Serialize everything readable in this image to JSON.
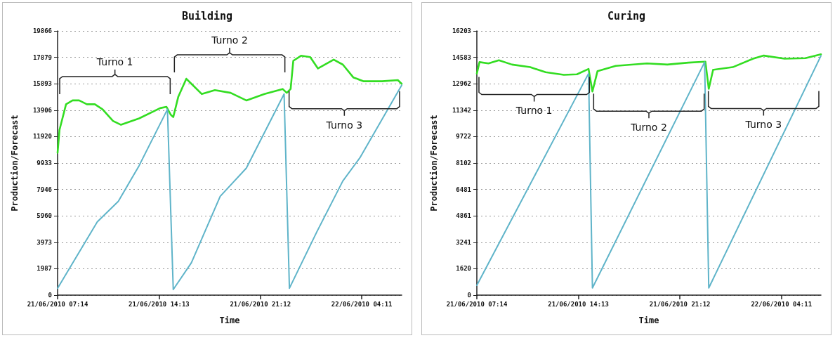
{
  "chart_data": [
    {
      "type": "line",
      "title": "Building",
      "xlabel": "Time",
      "ylabel": "Production/Forecast",
      "grid": "y",
      "marker": "none",
      "line_style": "solid",
      "xlim": [
        "2010-06-21T07:14",
        "2010-06-22T06:56"
      ],
      "xticks": [
        {
          "value": "2010-06-21T07:14",
          "label": "21/06/2010 07:14"
        },
        {
          "value": "2010-06-21T14:13",
          "label": "21/06/2010 14:13"
        },
        {
          "value": "2010-06-21T21:12",
          "label": "21/06/2010 21:12"
        },
        {
          "value": "2010-06-22T04:11",
          "label": "22/06/2010 04:11"
        }
      ],
      "ylim": [
        0,
        19866
      ],
      "yticks": [
        0,
        1987,
        3973,
        5960,
        7946,
        9933,
        11920,
        13906,
        15893,
        17879,
        19866
      ],
      "annotations": [
        "Turno 1",
        "Turno 2",
        "Turno 3"
      ],
      "series": [
        {
          "color": "#33dd22",
          "x": [
            "2010-06-21T07:14",
            "2010-06-21T07:22",
            "2010-06-21T07:49",
            "2010-06-21T08:16",
            "2010-06-21T08:43",
            "2010-06-21T09:15",
            "2010-06-21T09:48",
            "2010-06-21T10:20",
            "2010-06-21T11:03",
            "2010-06-21T11:36",
            "2010-06-21T12:51",
            "2010-06-21T14:18",
            "2010-06-21T14:44",
            "2010-06-21T15:01",
            "2010-06-21T15:12",
            "2010-06-21T15:33",
            "2010-06-21T16:06",
            "2010-06-21T16:27",
            "2010-06-21T17:10",
            "2010-06-21T18:04",
            "2010-06-21T19:09",
            "2010-06-21T20:14",
            "2010-06-21T21:29",
            "2010-06-21T22:44",
            "2010-06-21T23:01",
            "2010-06-21T23:17",
            "2010-06-21T23:28",
            "2010-06-22T00:00",
            "2010-06-22T00:38",
            "2010-06-22T01:10",
            "2010-06-22T02:15",
            "2010-06-22T02:53",
            "2010-06-22T03:36",
            "2010-06-22T04:19",
            "2010-06-22T05:35",
            "2010-06-22T06:40",
            "2010-06-22T06:56"
          ],
          "values": [
            10700,
            12430,
            14350,
            14640,
            14640,
            14350,
            14350,
            13970,
            13100,
            12810,
            13290,
            14060,
            14160,
            13580,
            13390,
            14930,
            16270,
            15890,
            15120,
            15410,
            15210,
            14640,
            15120,
            15500,
            15210,
            15500,
            17620,
            18000,
            17900,
            17040,
            17710,
            17330,
            16370,
            16080,
            16080,
            16170,
            15890
          ]
        },
        {
          "color": "#5fb4c9",
          "x": [
            "2010-06-21T07:14",
            "2010-06-21T09:58",
            "2010-06-21T11:25",
            "2010-06-21T12:51",
            "2010-06-21T14:48",
            "2010-06-21T15:12",
            "2010-06-21T16:27",
            "2010-06-21T18:26",
            "2010-06-21T20:14",
            "2010-06-21T22:50",
            "2010-06-21T23:12",
            "2010-06-22T01:05",
            "2010-06-22T02:53",
            "2010-06-22T04:03",
            "2010-06-22T06:56"
          ],
          "values": [
            520,
            5510,
            7050,
            9740,
            13970,
            420,
            2440,
            7430,
            9550,
            15120,
            520,
            4750,
            8590,
            10320,
            15790
          ]
        }
      ]
    },
    {
      "type": "line",
      "title": "Curing",
      "xlabel": "Time",
      "ylabel": "Production/Forecast",
      "grid": "y",
      "marker": "none",
      "line_style": "solid",
      "xlim": [
        "2010-06-21T07:14",
        "2010-06-22T06:54"
      ],
      "xticks": [
        {
          "value": "2010-06-21T07:14",
          "label": "21/06/2010 07:14"
        },
        {
          "value": "2010-06-21T14:13",
          "label": "21/06/2010 14:13"
        },
        {
          "value": "2010-06-21T21:12",
          "label": "21/06/2010 21:12"
        },
        {
          "value": "2010-06-22T04:11",
          "label": "22/06/2010 04:11"
        }
      ],
      "ylim": [
        0,
        16203
      ],
      "yticks": [
        0,
        1620,
        3241,
        4861,
        6481,
        8102,
        9722,
        11342,
        12962,
        14583,
        16203
      ],
      "annotations": [
        "Turno 1",
        "Turno 2",
        "Turno 3"
      ],
      "series": [
        {
          "color": "#33dd22",
          "x": [
            "2010-06-21T07:14",
            "2010-06-21T07:25",
            "2010-06-21T08:02",
            "2010-06-21T08:45",
            "2010-06-21T09:39",
            "2010-06-21T10:54",
            "2010-06-21T11:58",
            "2010-06-21T13:13",
            "2010-06-21T14:07",
            "2010-06-21T14:55",
            "2010-06-21T15:11",
            "2010-06-21T15:32",
            "2010-06-21T16:47",
            "2010-06-21T18:56",
            "2010-06-21T20:20",
            "2010-06-21T21:47",
            "2010-06-21T22:57",
            "2010-06-21T23:11",
            "2010-06-21T23:29",
            "2010-06-22T00:50",
            "2010-06-22T02:14",
            "2010-06-22T02:58",
            "2010-06-22T04:24",
            "2010-06-22T05:50",
            "2010-06-22T06:54"
          ],
          "values": [
            13590,
            14290,
            14210,
            14400,
            14140,
            13980,
            13670,
            13510,
            13540,
            13870,
            12490,
            13740,
            14060,
            14210,
            14140,
            14260,
            14320,
            12650,
            13820,
            13980,
            14500,
            14690,
            14500,
            14530,
            14770
          ]
        },
        {
          "color": "#5fb4c9",
          "x": [
            "2010-06-21T07:14",
            "2010-06-21T14:55",
            "2010-06-21T15:11",
            "2010-06-21T22:54",
            "2010-06-21T23:11",
            "2010-06-22T06:54"
          ],
          "values": [
            600,
            13590,
            440,
            14290,
            440,
            14680
          ]
        }
      ]
    }
  ]
}
